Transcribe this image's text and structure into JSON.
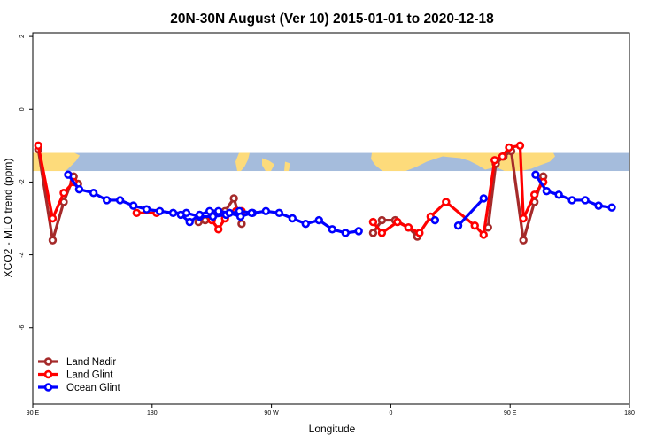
{
  "chart_data": {
    "type": "line",
    "title": "20N-30N August (Ver 10)   2015-01-01 to 2020-12-18",
    "xlabel": "Longitude",
    "ylabel": "XCO2 - MLO trend (ppm)",
    "xlim": [
      -90,
      180
    ],
    "ylim": [
      -8.1,
      2.1
    ],
    "x_ticks": [
      {
        "value": -90,
        "label": "90 E"
      },
      {
        "value": -36,
        "label": "180"
      },
      {
        "value": 18,
        "label": "90 W"
      },
      {
        "value": 72,
        "label": "0"
      },
      {
        "value": 126,
        "label": "90 E"
      },
      {
        "value": 180,
        "label": "180"
      }
    ],
    "y_ticks": [
      {
        "value": 2,
        "label": "2"
      },
      {
        "value": 0,
        "label": "0"
      },
      {
        "value": -2,
        "label": "-2"
      },
      {
        "value": -4,
        "label": "-4"
      },
      {
        "value": -6,
        "label": "-6"
      }
    ],
    "map_band": {
      "y_top": -1.2,
      "y_bottom": -1.7,
      "ocean_color": "#a5bcdc",
      "land_color": "#fddb7b"
    },
    "legend_position": "bottom-left",
    "series": [
      {
        "name": "Land Nadir",
        "color": "#a52a2a",
        "segments": [
          [
            [
              -87.5,
              -1.1
            ],
            [
              -81,
              -3.6
            ],
            [
              -76,
              -2.55
            ],
            [
              -71.5,
              -1.85
            ],
            [
              -69.5,
              -2.05
            ]
          ],
          [
            [
              -15,
              -3.1
            ],
            [
              -12,
              -3.05
            ],
            [
              -9,
              -2.85
            ],
            [
              -3,
              -2.8
            ],
            [
              1,
              -2.45
            ],
            [
              4.5,
              -3.15
            ]
          ],
          [
            [
              64,
              -3.4
            ],
            [
              68,
              -3.05
            ],
            [
              74,
              -3.05
            ],
            [
              80,
              -3.25
            ],
            [
              84,
              -3.5
            ]
          ],
          [
            [
              116,
              -3.25
            ],
            [
              119.5,
              -1.5
            ],
            [
              123,
              -1.3
            ],
            [
              126.5,
              -1.15
            ],
            [
              132,
              -3.6
            ],
            [
              137,
              -2.55
            ],
            [
              141,
              -1.85
            ]
          ]
        ]
      },
      {
        "name": "Land Glint",
        "color": "#ff0000",
        "segments": [
          [
            [
              -87.5,
              -1.0
            ],
            [
              -81,
              -3.0
            ],
            [
              -76,
              -2.3
            ],
            [
              -71.5,
              -2.0
            ]
          ],
          [
            [
              -43,
              -2.85
            ],
            [
              -34,
              -2.85
            ]
          ],
          [
            [
              -9,
              -3.05
            ],
            [
              -6,
              -3.3
            ],
            [
              -3,
              -3.0
            ],
            [
              2,
              -2.8
            ],
            [
              4.5,
              -2.8
            ]
          ],
          [
            [
              64,
              -3.1
            ],
            [
              68,
              -3.4
            ],
            [
              75,
              -3.1
            ],
            [
              80,
              -3.25
            ],
            [
              85,
              -3.4
            ],
            [
              90,
              -2.95
            ],
            [
              97,
              -2.55
            ],
            [
              110,
              -3.2
            ],
            [
              114,
              -3.45
            ],
            [
              119,
              -1.4
            ],
            [
              122.5,
              -1.3
            ],
            [
              125.5,
              -1.05
            ],
            [
              130.5,
              -1.0
            ],
            [
              132,
              -3.0
            ],
            [
              137,
              -2.35
            ],
            [
              141,
              -2.0
            ]
          ]
        ]
      },
      {
        "name": "Ocean Glint",
        "color": "#0000ff",
        "segments": [
          [
            [
              -74,
              -1.8
            ],
            [
              -69,
              -2.2
            ],
            [
              -62.5,
              -2.3
            ],
            [
              -56.5,
              -2.5
            ],
            [
              -50.5,
              -2.5
            ],
            [
              -44.5,
              -2.65
            ],
            [
              -38.5,
              -2.75
            ],
            [
              -32.5,
              -2.8
            ],
            [
              -26.5,
              -2.85
            ],
            [
              -20.5,
              -2.85
            ],
            [
              -14.5,
              -2.95
            ],
            [
              -8.5,
              -2.95
            ],
            [
              -2.5,
              -2.9
            ],
            [
              3.5,
              -2.8
            ],
            [
              9.5,
              -2.85
            ],
            [
              15.5,
              -2.8
            ],
            [
              21.5,
              -2.85
            ],
            [
              27.5,
              -3.0
            ],
            [
              33.5,
              -3.15
            ],
            [
              39.5,
              -3.05
            ],
            [
              45.5,
              -3.3
            ],
            [
              51.5,
              -3.4
            ],
            [
              57.5,
              -3.35
            ]
          ],
          [
            [
              -23,
              -2.9
            ],
            [
              -19,
              -3.1
            ],
            [
              -14.5,
              -2.9
            ],
            [
              -10,
              -2.8
            ],
            [
              -6,
              -2.8
            ],
            [
              -1,
              -2.85
            ],
            [
              4,
              -2.95
            ],
            [
              9,
              -2.85
            ]
          ],
          [
            [
              92,
              -3.05
            ]
          ],
          [
            [
              102.5,
              -3.2
            ],
            [
              114,
              -2.45
            ]
          ],
          [
            [
              137.5,
              -1.8
            ],
            [
              142.5,
              -2.25
            ],
            [
              148,
              -2.35
            ],
            [
              154,
              -2.5
            ],
            [
              160,
              -2.5
            ],
            [
              166,
              -2.65
            ],
            [
              172,
              -2.7
            ]
          ]
        ]
      }
    ]
  }
}
